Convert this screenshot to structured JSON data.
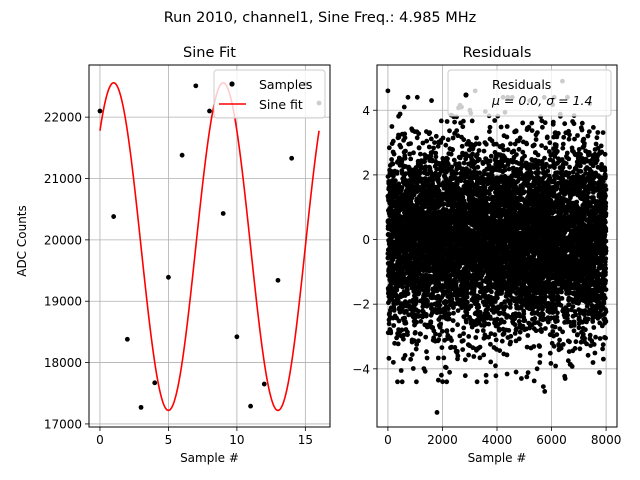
{
  "figure": {
    "suptitle": "Run 2010, channel1, Sine Freq.: 4.985 MHz"
  },
  "colors": {
    "samples": "#000000",
    "fit": "#ff0000",
    "residuals": "#000000",
    "grid": "#b0b0b0"
  },
  "chart_data": [
    {
      "type": "line",
      "title": "Sine Fit",
      "xlabel": "Sample #",
      "ylabel": "ADC Counts",
      "xlim": [
        -0.8,
        16.8
      ],
      "ylim": [
        16950,
        22850
      ],
      "xticks": [
        0,
        5,
        10,
        15
      ],
      "yticks": [
        17000,
        18000,
        19000,
        20000,
        21000,
        22000
      ],
      "grid": true,
      "legend_position": "upper right",
      "series": [
        {
          "name": "Samples",
          "style": "points",
          "x": [
            0,
            1,
            2,
            3,
            4,
            5,
            6,
            7,
            8,
            9,
            10,
            11,
            12,
            13,
            14,
            15,
            16
          ],
          "y": [
            22100,
            20380,
            18380,
            17270,
            17670,
            19390,
            21380,
            22510,
            22100,
            20430,
            18420,
            17290,
            17650,
            19340,
            21330,
            22540,
            22230
          ]
        },
        {
          "name": "Sine fit",
          "style": "line",
          "model": {
            "offset": 19890,
            "amplitude": 2670,
            "period_samples": 8.0,
            "phase_samples": 1.0,
            "x_range": [
              0,
              16
            ]
          }
        }
      ]
    },
    {
      "type": "scatter",
      "title": "Residuals",
      "xlabel": "Sample #",
      "ylabel": "",
      "xlim": [
        -400,
        8400
      ],
      "ylim": [
        -5.8,
        5.4
      ],
      "xticks": [
        0,
        2000,
        4000,
        6000,
        8000
      ],
      "yticks": [
        -4,
        -2,
        0,
        2,
        4
      ],
      "grid": true,
      "legend_position": "upper right",
      "legend_label": "Residuals",
      "legend_stats": "μ = 0.0, σ = 1.4",
      "stats": {
        "mean": 0.0,
        "sigma": 1.4,
        "n_points": 8000
      },
      "outliers": [
        {
          "x": 0,
          "y": 4.6
        },
        {
          "x": 1800,
          "y": -5.35
        },
        {
          "x": 1850,
          "y": -4.35
        },
        {
          "x": 5700,
          "y": -4.55
        },
        {
          "x": 5750,
          "y": -4.7
        },
        {
          "x": 6500,
          "y": -4.3
        },
        {
          "x": 6400,
          "y": 4.9
        },
        {
          "x": 3200,
          "y": 4.6
        },
        {
          "x": 1600,
          "y": 4.3
        },
        {
          "x": 600,
          "y": 4.1
        },
        {
          "x": 3600,
          "y": -4.2
        },
        {
          "x": 4700,
          "y": -4.1
        },
        {
          "x": 7400,
          "y": 4.2
        },
        {
          "x": 2700,
          "y": 4.1
        },
        {
          "x": 5200,
          "y": 4.3
        },
        {
          "x": 200,
          "y": -3.8
        },
        {
          "x": 7900,
          "y": -3.7
        }
      ]
    }
  ]
}
